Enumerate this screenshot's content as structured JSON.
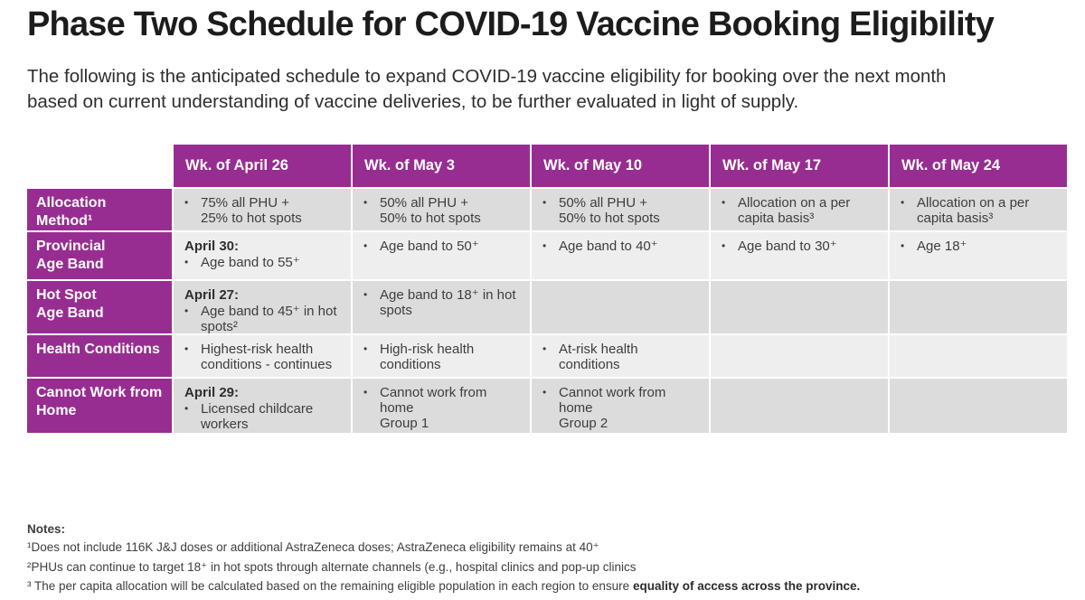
{
  "title": "Phase Two Schedule for COVID-19 Vaccine Booking Eligibility",
  "subtitle": "The following is the anticipated schedule to expand COVID-19 vaccine eligibility for booking over the next month\nbased on current understanding of vaccine deliveries, to be further evaluated in light of supply.",
  "colors": {
    "accent_purple": "#982d91",
    "row_shade_dark": "#dcdcdc",
    "row_shade_light": "#eeeeee"
  },
  "icons": {
    "bullet": "•"
  },
  "table": {
    "columns": [
      "Wk. of April 26",
      "Wk. of May 3",
      "Wk. of May 10",
      "Wk. of May 17",
      "Wk. of May 24"
    ],
    "rows": [
      {
        "label": "Allocation\nMethod¹",
        "cells": [
          {
            "bullets": [
              "75% all PHU +\n25% to hot spots"
            ]
          },
          {
            "bullets": [
              "50% all PHU +\n50% to hot spots"
            ]
          },
          {
            "bullets": [
              "50% all PHU +\n50% to hot spots"
            ]
          },
          {
            "bullets": [
              "Allocation on a per\ncapita basis³"
            ]
          },
          {
            "bullets": [
              "Allocation on a per\ncapita basis³"
            ]
          }
        ]
      },
      {
        "label": "Provincial\nAge Band",
        "cells": [
          {
            "date": "April 30:",
            "bullets": [
              "Age band to 55⁺"
            ]
          },
          {
            "bullets": [
              "Age band to 50⁺"
            ]
          },
          {
            "bullets": [
              "Age band to 40⁺"
            ]
          },
          {
            "bullets": [
              "Age band to 30⁺"
            ]
          },
          {
            "bullets": [
              "Age 18⁺"
            ]
          }
        ]
      },
      {
        "label": "Hot Spot\nAge Band",
        "cells": [
          {
            "date": "April 27:",
            "bullets": [
              "Age band to 45⁺ in hot\nspots²"
            ]
          },
          {
            "bullets": [
              "Age band to 18⁺ in hot\nspots"
            ]
          },
          {
            "bullets": []
          },
          {
            "bullets": []
          },
          {
            "bullets": []
          }
        ]
      },
      {
        "label": "Health Conditions",
        "cells": [
          {
            "bullets": [
              "Highest-risk health\nconditions - continues"
            ]
          },
          {
            "bullets": [
              "High-risk health\nconditions"
            ]
          },
          {
            "bullets": [
              "At-risk health\nconditions"
            ]
          },
          {
            "bullets": []
          },
          {
            "bullets": []
          }
        ]
      },
      {
        "label": "Cannot Work from\nHome",
        "cells": [
          {
            "date": "April 29:",
            "bullets": [
              "Licensed childcare\nworkers"
            ]
          },
          {
            "bullets": [
              "Cannot work from\nhome\nGroup 1"
            ]
          },
          {
            "bullets": [
              "Cannot work from\nhome\nGroup 2"
            ]
          },
          {
            "bullets": []
          },
          {
            "bullets": []
          }
        ]
      }
    ]
  },
  "notes": {
    "heading": "Notes:",
    "note1": "¹Does not include 116K J&J doses or additional AstraZeneca doses; AstraZeneca eligibility remains at 40⁺",
    "note2": "²PHUs can continue to target 18⁺ in hot spots through alternate channels (e.g., hospital clinics and pop-up clinics",
    "note3": "³ The per capita allocation will be calculated based on the remaining eligible population in each region to ensure ",
    "note3_emphasis": "equality of access across the province."
  }
}
